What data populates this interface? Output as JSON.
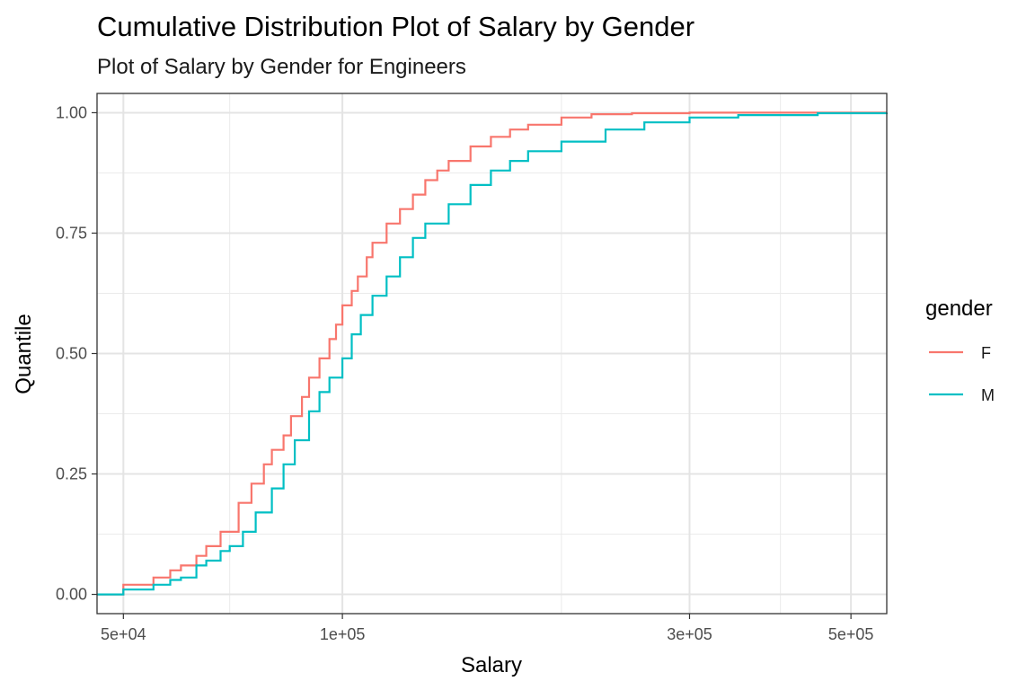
{
  "chart_data": {
    "type": "line",
    "title": "Cumulative Distribution Plot of Salary by Gender",
    "subtitle": "Plot of Salary by Gender for Engineers",
    "xlabel": "Salary",
    "ylabel": "Quantile",
    "x_scale": "log10",
    "xlim": [
      46000,
      560000
    ],
    "ylim": [
      -0.04,
      1.04
    ],
    "x_ticks": [
      50000,
      100000,
      300000,
      500000
    ],
    "x_tick_labels": [
      "5e+04",
      "1e+05",
      "3e+05",
      "5e+05"
    ],
    "x_minor_ticks": [
      70000,
      200000,
      400000
    ],
    "y_ticks": [
      0,
      0.25,
      0.5,
      0.75,
      1.0
    ],
    "y_tick_labels": [
      "0.00",
      "0.25",
      "0.50",
      "0.75",
      "1.00"
    ],
    "grid": true,
    "legend": {
      "title": "gender",
      "position": "right"
    },
    "series": [
      {
        "name": "F",
        "color": "#F8766D",
        "x": [
          46000,
          50000,
          55000,
          58000,
          60000,
          63000,
          65000,
          68000,
          72000,
          75000,
          78000,
          80000,
          83000,
          85000,
          88000,
          90000,
          93000,
          96000,
          98000,
          100000,
          103000,
          105000,
          108000,
          110000,
          115000,
          120000,
          125000,
          130000,
          135000,
          140000,
          150000,
          160000,
          170000,
          180000,
          200000,
          220000,
          250000,
          300000,
          400000,
          560000
        ],
        "y": [
          0,
          0.02,
          0.035,
          0.05,
          0.06,
          0.08,
          0.1,
          0.13,
          0.19,
          0.23,
          0.27,
          0.3,
          0.33,
          0.37,
          0.41,
          0.45,
          0.49,
          0.53,
          0.56,
          0.6,
          0.63,
          0.66,
          0.7,
          0.73,
          0.77,
          0.8,
          0.83,
          0.86,
          0.88,
          0.9,
          0.93,
          0.95,
          0.965,
          0.975,
          0.99,
          0.997,
          0.999,
          1.0,
          1.0,
          1.0
        ]
      },
      {
        "name": "M",
        "color": "#00BFC4",
        "x": [
          46000,
          50000,
          55000,
          58000,
          60000,
          63000,
          65000,
          68000,
          70000,
          73000,
          76000,
          80000,
          83000,
          86000,
          90000,
          93000,
          96000,
          100000,
          103000,
          106000,
          110000,
          115000,
          120000,
          125000,
          130000,
          140000,
          150000,
          160000,
          170000,
          180000,
          200000,
          230000,
          260000,
          300000,
          350000,
          450000,
          560000
        ],
        "y": [
          0,
          0.01,
          0.02,
          0.03,
          0.035,
          0.06,
          0.07,
          0.09,
          0.1,
          0.13,
          0.17,
          0.22,
          0.27,
          0.32,
          0.38,
          0.42,
          0.45,
          0.49,
          0.54,
          0.58,
          0.62,
          0.66,
          0.7,
          0.74,
          0.77,
          0.81,
          0.85,
          0.88,
          0.9,
          0.92,
          0.94,
          0.965,
          0.98,
          0.99,
          0.995,
          0.999,
          1.0
        ]
      }
    ]
  }
}
